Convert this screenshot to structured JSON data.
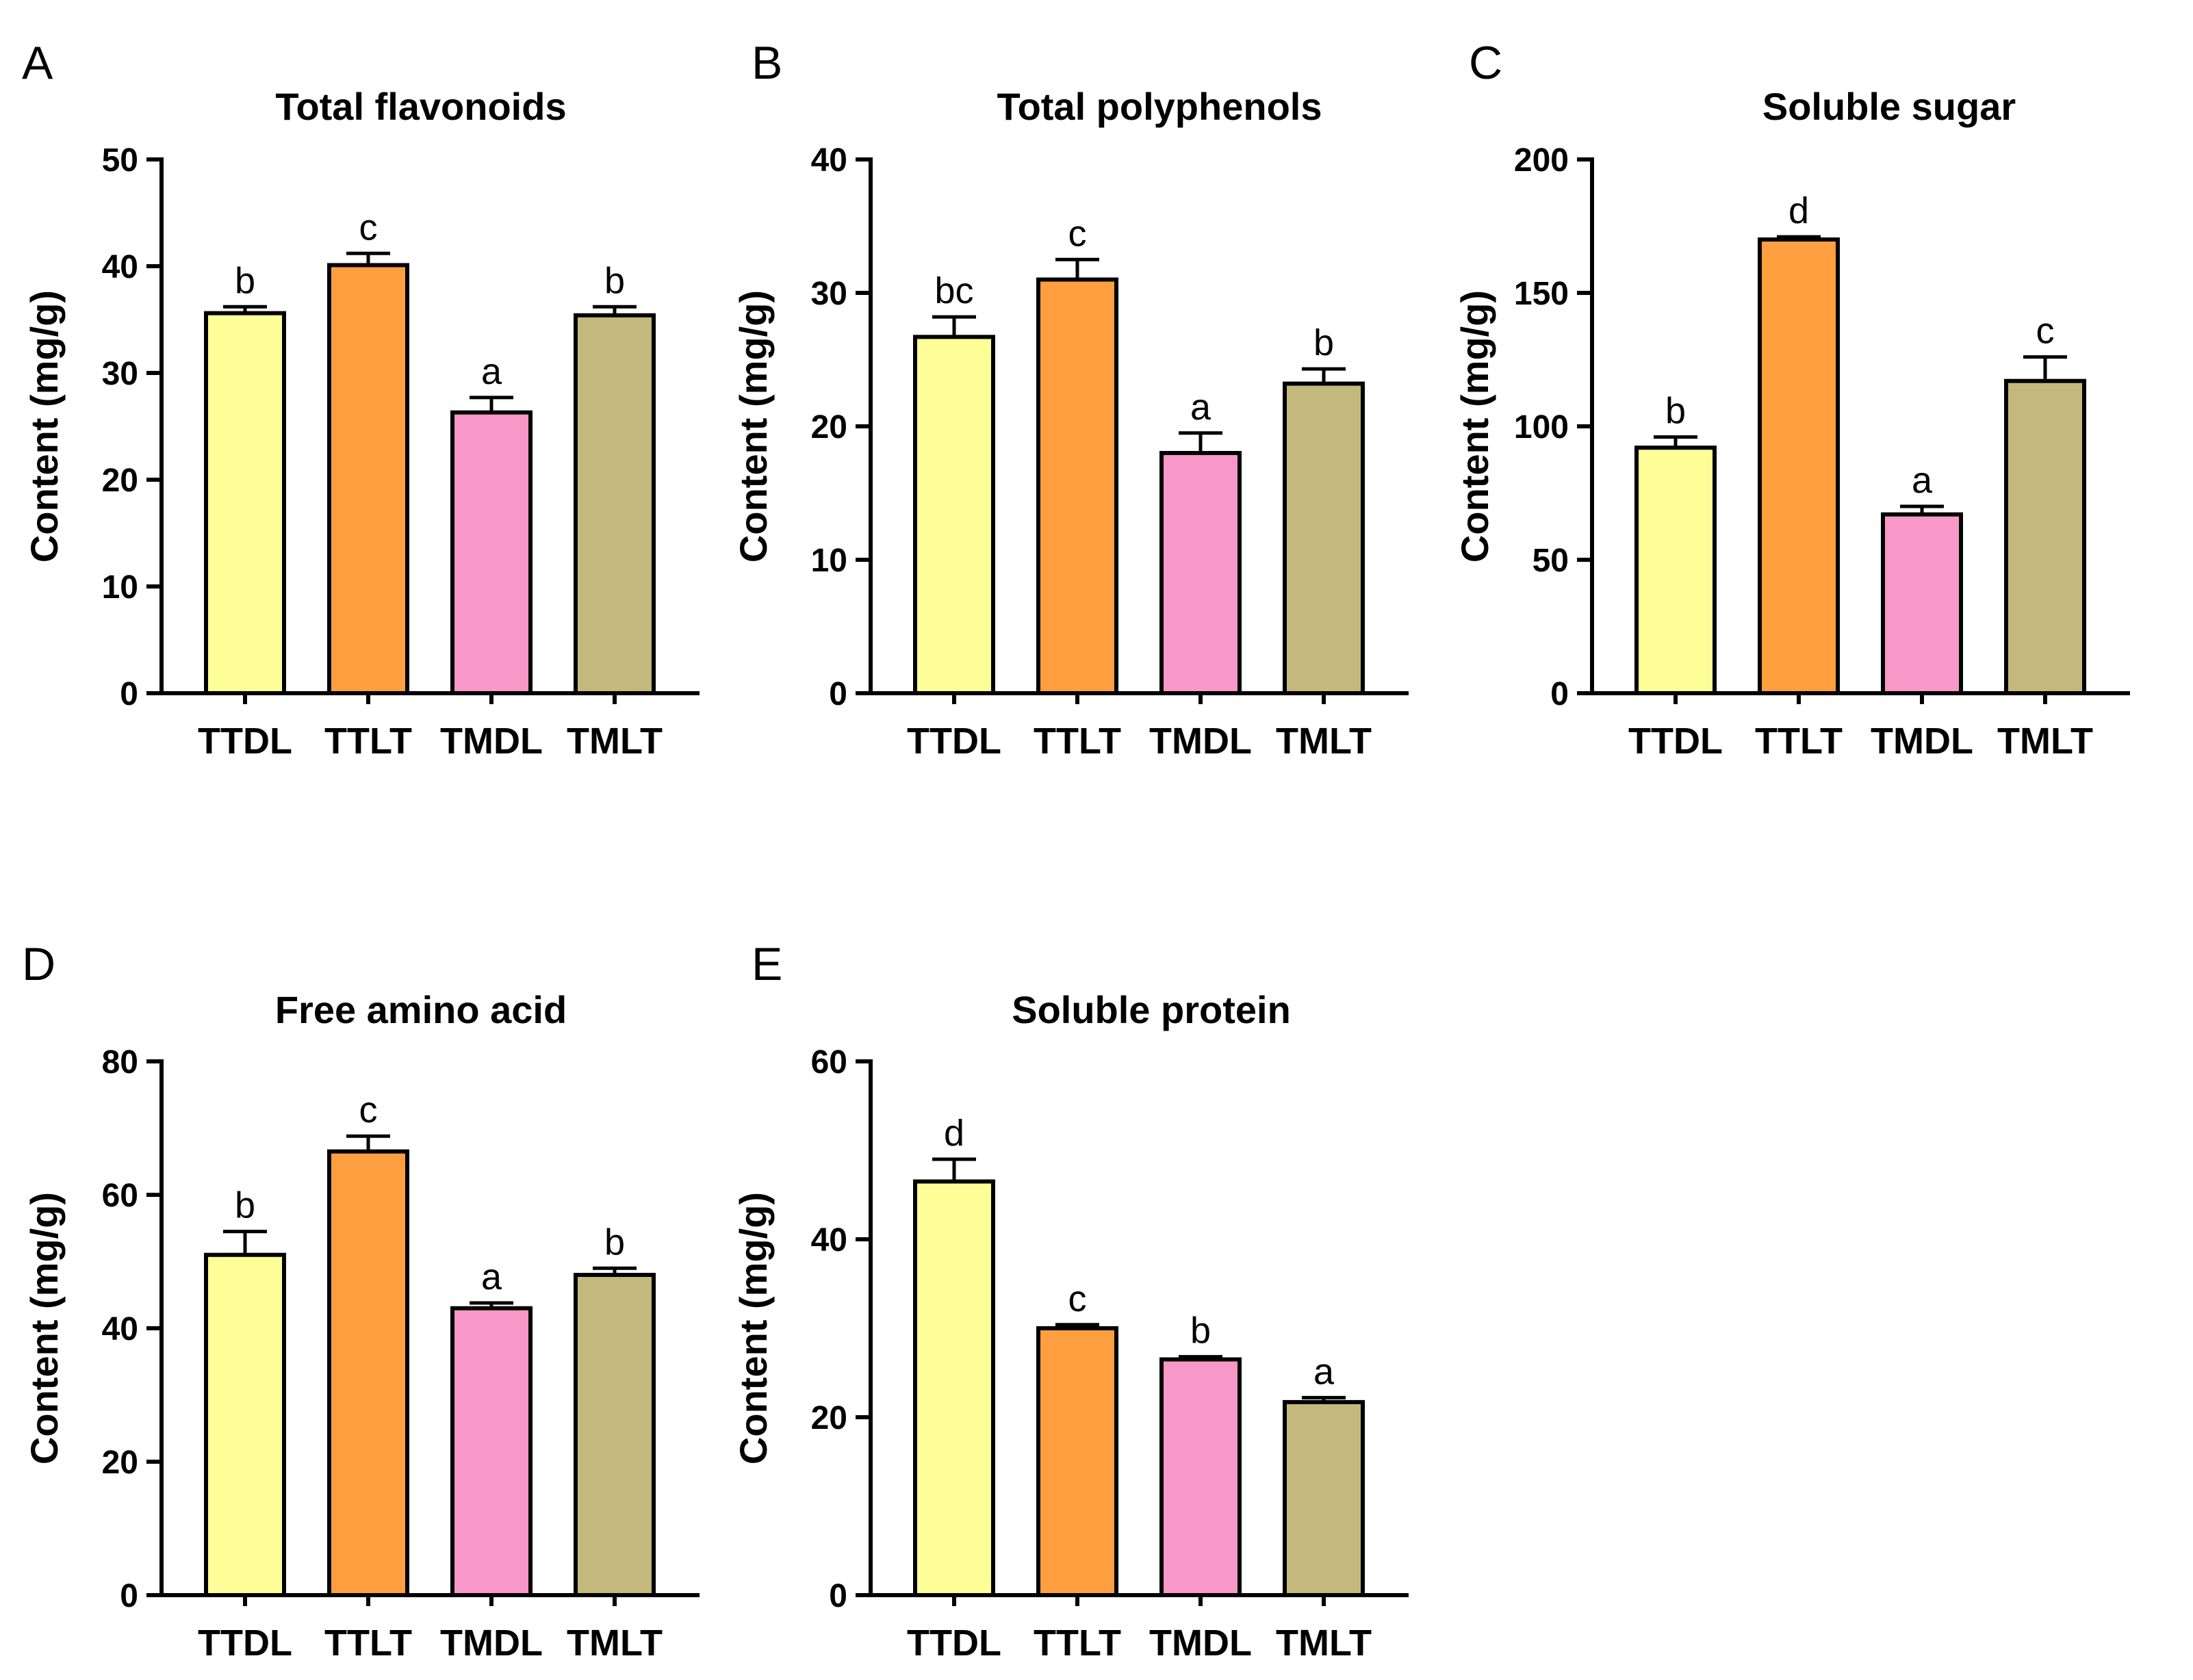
{
  "colors": {
    "TTDL": "#FEFE99",
    "TTLT": "#FF9F40",
    "TMDL": "#F898C8",
    "TMLT": "#C4B97C",
    "axis": "#000000"
  },
  "chart_data": [
    {
      "panel": "A",
      "type": "bar",
      "title": "Total flavonoids",
      "ylabel": "Content (mg/g)",
      "xlabel": "",
      "ylim": [
        0,
        50
      ],
      "yticks": [
        0,
        10,
        20,
        30,
        40,
        50
      ],
      "categories": [
        "TTDL",
        "TTLT",
        "TMDL",
        "TMLT"
      ],
      "values": [
        35.6,
        40.1,
        26.3,
        35.4
      ],
      "errors": [
        0.6,
        1.1,
        1.4,
        0.8
      ],
      "significance": [
        "b",
        "c",
        "a",
        "b"
      ]
    },
    {
      "panel": "B",
      "type": "bar",
      "title": "Total polyphenols",
      "ylabel": "Content (mg/g)",
      "xlabel": "",
      "ylim": [
        0,
        40
      ],
      "yticks": [
        0,
        10,
        20,
        30,
        40
      ],
      "categories": [
        "TTDL",
        "TTLT",
        "TMDL",
        "TMLT"
      ],
      "values": [
        26.7,
        31.0,
        18.0,
        23.2
      ],
      "errors": [
        1.5,
        1.5,
        1.5,
        1.1
      ],
      "significance": [
        "bc",
        "c",
        "a",
        "b"
      ]
    },
    {
      "panel": "C",
      "type": "bar",
      "title": "Soluble sugar",
      "ylabel": "Content (mg/g)",
      "xlabel": "",
      "ylim": [
        0,
        200
      ],
      "yticks": [
        0,
        50,
        100,
        150,
        200
      ],
      "categories": [
        "TTDL",
        "TTLT",
        "TMDL",
        "TMLT"
      ],
      "values": [
        92,
        170,
        67,
        117
      ],
      "errors": [
        4,
        1,
        3,
        9
      ],
      "significance": [
        "b",
        "d",
        "a",
        "c"
      ]
    },
    {
      "panel": "D",
      "type": "bar",
      "title": "Free amino acid",
      "ylabel": "Content (mg/g)",
      "xlabel": "",
      "ylim": [
        0,
        80
      ],
      "yticks": [
        0,
        20,
        40,
        60,
        80
      ],
      "categories": [
        "TTDL",
        "TTLT",
        "TMDL",
        "TMLT"
      ],
      "values": [
        51,
        66.5,
        43,
        48
      ],
      "errors": [
        3.5,
        2.3,
        0.8,
        1.0
      ],
      "significance": [
        "b",
        "c",
        "a",
        "b"
      ]
    },
    {
      "panel": "E",
      "type": "bar",
      "title": "Soluble protein",
      "ylabel": "Content (mg/g)",
      "xlabel": "",
      "ylim": [
        0,
        60
      ],
      "yticks": [
        0,
        20,
        40,
        60
      ],
      "categories": [
        "TTDL",
        "TTLT",
        "TMDL",
        "TMLT"
      ],
      "values": [
        46.5,
        30,
        26.5,
        21.7
      ],
      "errors": [
        2.5,
        0.4,
        0.3,
        0.5
      ],
      "significance": [
        "d",
        "c",
        "b",
        "a"
      ]
    }
  ]
}
